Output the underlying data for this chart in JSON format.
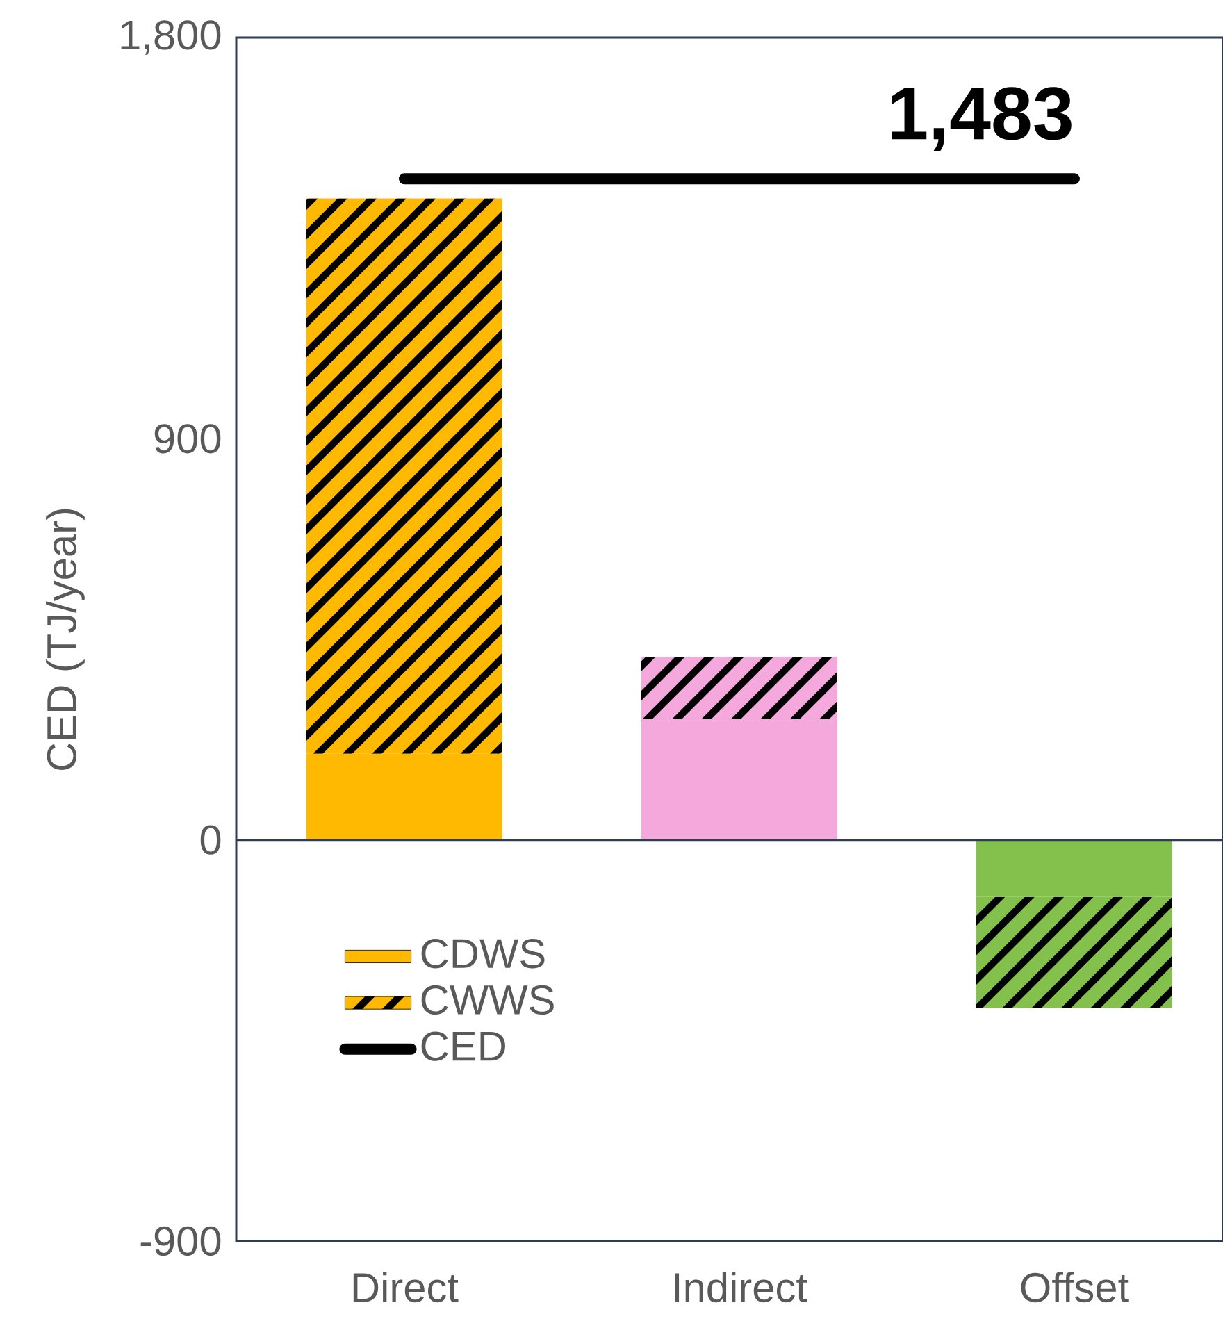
{
  "chart_data": {
    "type": "bar",
    "stacked": true,
    "ylabel": "CED (TJ/year)",
    "categories": [
      "Direct",
      "Indirect",
      "Offset"
    ],
    "series": [
      {
        "name": "CDWS",
        "colors": [
          "#ffb900",
          "#f4a8dc",
          "#84c04c"
        ],
        "values": [
          193,
          271,
          -128
        ]
      },
      {
        "name": "CWWS",
        "colors": [
          "#ffb900",
          "#f4a8dc",
          "#84c04c"
        ],
        "values": [
          1246,
          140,
          -249
        ]
      },
      {
        "name": "CED",
        "type": "line",
        "color": "#000000",
        "values": [
          1483,
          1483,
          1483
        ],
        "value_labels": [
          null,
          null,
          "1,483"
        ]
      }
    ],
    "ylim": [
      -900,
      1800
    ],
    "yticks": [
      {
        "value": -900,
        "label": "-900"
      },
      0,
      900,
      {
        "value": 1800,
        "label": "1,800"
      }
    ],
    "ref_lines": [
      {
        "axis": "y",
        "value": 0,
        "color": "#2f3d52"
      }
    ],
    "grid": false,
    "legend": "bottom left",
    "marker": "none",
    "line_style": "solid"
  }
}
